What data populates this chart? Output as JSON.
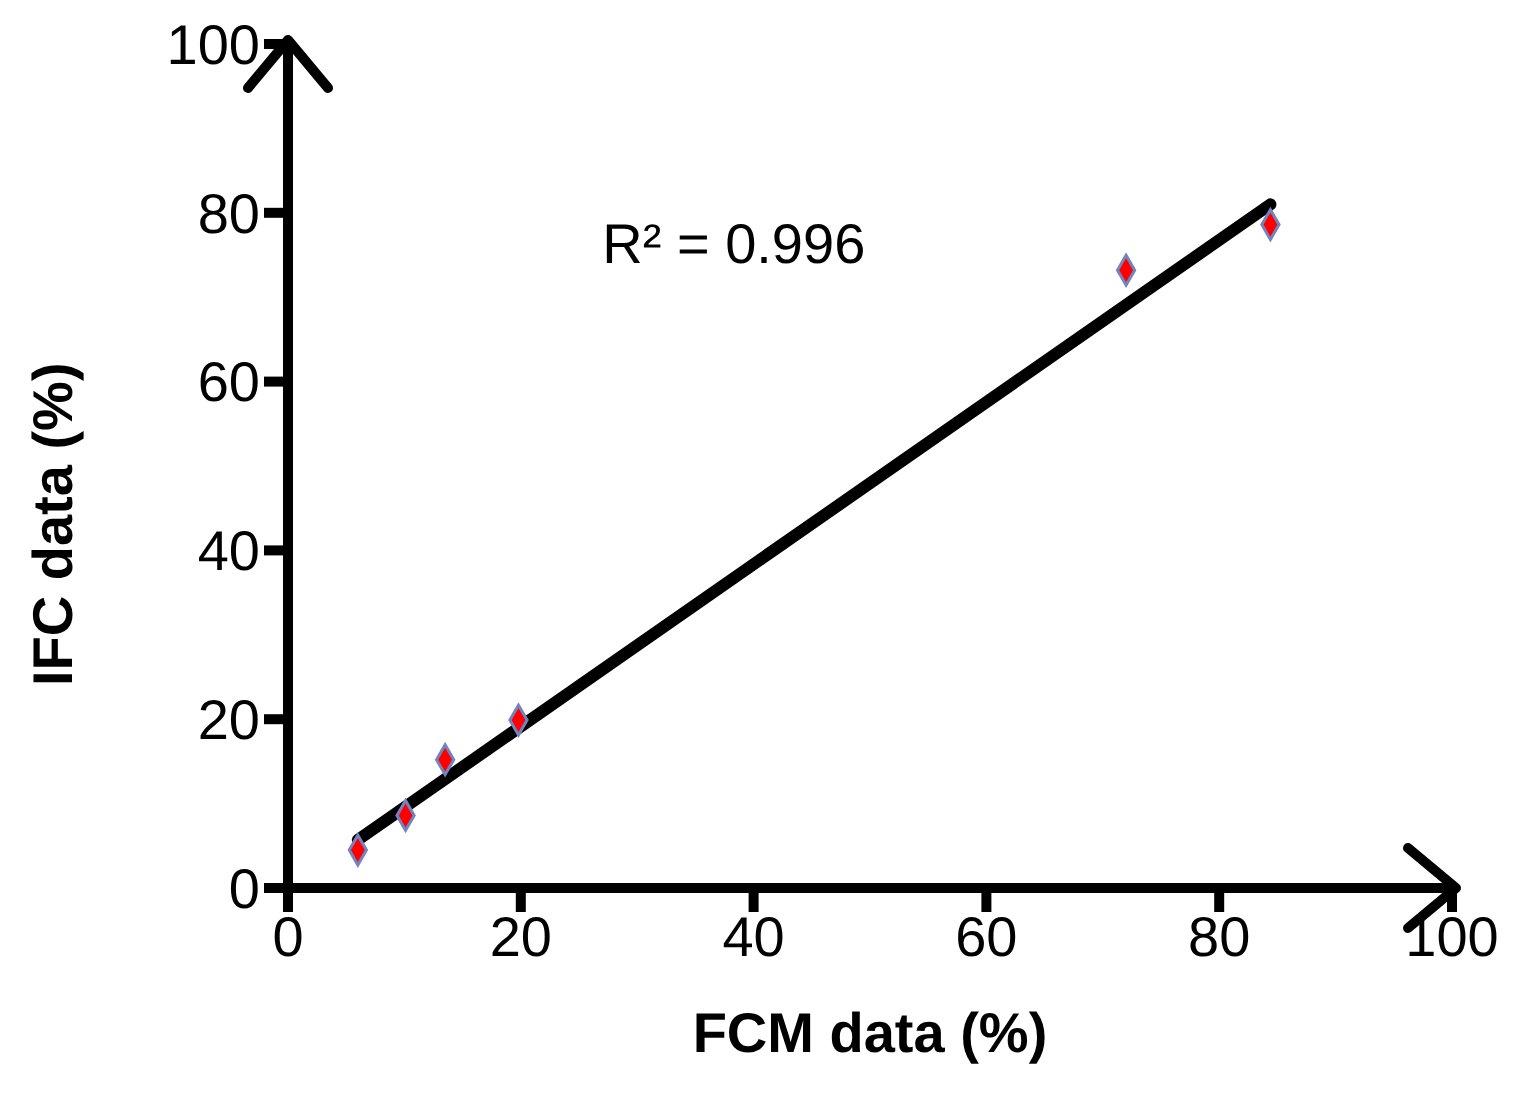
{
  "chart_data": {
    "type": "scatter",
    "xlabel": "FCM data (%)",
    "ylabel": "IFC data (%)",
    "annotations": [
      "R² = 0.996"
    ],
    "xlim": [
      0,
      100
    ],
    "ylim": [
      0,
      100
    ],
    "xticks": [
      0,
      20,
      40,
      60,
      80,
      100
    ],
    "yticks": [
      0,
      20,
      40,
      60,
      80,
      100
    ],
    "grid": false,
    "legend": false,
    "marker": "diamond",
    "series": [
      {
        "color": "#ff0000",
        "x": [
          6,
          10.1,
          13.5,
          19.8,
          72,
          84.4
        ],
        "values": [
          4.5,
          8.6,
          15.2,
          19.9,
          73.2,
          78.6
        ]
      },
      {
        "type": "line",
        "color": "#000000",
        "marker": "none",
        "x": [
          6,
          84.4
        ],
        "values": [
          5.7,
          81
        ]
      }
    ]
  }
}
